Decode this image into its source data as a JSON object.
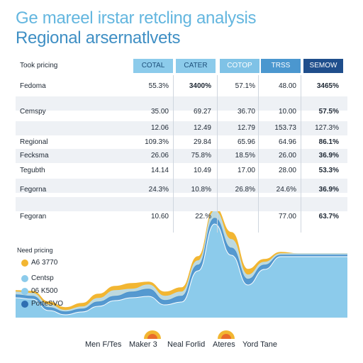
{
  "title": "Ge mareel irstar retcling analysis",
  "subtitle": "Regional arsernatlvets",
  "table": {
    "corner_label": "Took pricing",
    "columns": [
      "COTAL",
      "CATER",
      "COTOP",
      "TRSS",
      "SEMOW"
    ],
    "column_colors": [
      "#8ccbeb",
      "#8ccbeb",
      "#7fc2e6",
      "#4b97cf",
      "#1f4e8c"
    ],
    "rows": [
      {
        "label": "Fedoma",
        "values": [
          "55.3%",
          "3400%",
          "57.1%",
          "48.00",
          "3465%"
        ],
        "bold": [
          false,
          true,
          false,
          false,
          true
        ]
      },
      {
        "label": "",
        "values": [
          "",
          "",
          "",
          "",
          ""
        ],
        "bold": [
          false,
          false,
          false,
          false,
          false
        ]
      },
      {
        "label": "Cemspy",
        "values": [
          "35.00",
          "69.27",
          "36.70",
          "10.00",
          "57.5%"
        ],
        "bold": [
          false,
          false,
          false,
          false,
          true
        ]
      },
      {
        "label": "",
        "values": [
          "12.06",
          "12.49",
          "12.79",
          "153.73",
          "127.3%"
        ],
        "bold": [
          false,
          false,
          false,
          false,
          false
        ]
      },
      {
        "label": "Regional",
        "values": [
          "109.3%",
          "29.84",
          "65.96",
          "64.96",
          "86.1%"
        ],
        "bold": [
          false,
          false,
          false,
          false,
          true
        ]
      },
      {
        "label": "Fecksma",
        "values": [
          "26.06",
          "75.8%",
          "18.5%",
          "26.00",
          "36.9%"
        ],
        "bold": [
          false,
          false,
          false,
          false,
          true
        ]
      },
      {
        "label": "Tegubth",
        "values": [
          "14.14",
          "10.49",
          "17.00",
          "28.00",
          "53.3%"
        ],
        "bold": [
          false,
          false,
          false,
          false,
          true
        ]
      },
      {
        "label": "",
        "values": [
          "",
          "",
          "",
          "",
          ""
        ],
        "bold": [
          false,
          false,
          false,
          false,
          false
        ]
      },
      {
        "label": "Fegorna",
        "values": [
          "24.3%",
          "10.8%",
          "26.8%",
          "24.6%",
          "36.9%"
        ],
        "bold": [
          false,
          false,
          false,
          false,
          true
        ]
      },
      {
        "label": "",
        "values": [
          "",
          "",
          "",
          "",
          ""
        ],
        "bold": [
          false,
          false,
          false,
          false,
          false
        ]
      },
      {
        "label": "Fegoran",
        "values": [
          "10.60",
          "22.%",
          "",
          "77.00",
          "63.7%"
        ],
        "bold": [
          false,
          false,
          false,
          false,
          true
        ]
      }
    ]
  },
  "chart_data": {
    "type": "area",
    "x": [
      0,
      1,
      2,
      3,
      4,
      5,
      6,
      7,
      8,
      9,
      10,
      11,
      12,
      13,
      14,
      15,
      16,
      17,
      18,
      19,
      20
    ],
    "series": [
      {
        "values": [
          38,
          37,
          22,
          14,
          20,
          33,
          44,
          48,
          50,
          36,
          42,
          86,
          155,
          120,
          68,
          82,
          92,
          90,
          90,
          90,
          90
        ],
        "color": "#f2b632"
      },
      {
        "values": [
          36,
          34,
          18,
          10,
          15,
          27,
          38,
          40,
          46,
          30,
          36,
          80,
          150,
          110,
          60,
          78,
          90,
          90,
          90,
          90,
          90
        ],
        "color": "#b9dbe8"
      },
      {
        "values": [
          32,
          30,
          14,
          8,
          12,
          22,
          30,
          36,
          40,
          24,
          30,
          74,
          140,
          98,
          54,
          74,
          88,
          88,
          88,
          88,
          88
        ],
        "color": "#4f96cf"
      },
      {
        "values": [
          28,
          26,
          10,
          4,
          8,
          16,
          24,
          28,
          30,
          18,
          22,
          66,
          132,
          88,
          46,
          68,
          86,
          86,
          86,
          86,
          86
        ],
        "color": "#8ccbeb"
      }
    ],
    "ylim": [
      0,
      170
    ]
  },
  "legend": {
    "title": "Need pricing",
    "items": [
      {
        "label": "A6 3770",
        "color": "#f2b632"
      },
      {
        "label": "Centsp",
        "color": "#8ccbeb"
      },
      {
        "label": "06 K500",
        "color": "#8ccbeb"
      },
      {
        "label": "PorteSVO",
        "color": "#2f6fb2"
      }
    ]
  },
  "footer": {
    "item1": "Men F/Tes",
    "item2": "Maker 3",
    "item3": "Neal Forlid",
    "item4": "Ateres",
    "item5": "Yord Tane"
  }
}
